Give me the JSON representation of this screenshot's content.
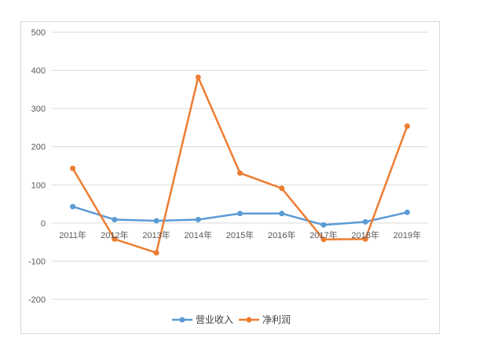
{
  "chart_data": {
    "type": "line",
    "title": "",
    "xlabel": "",
    "ylabel": "",
    "categories": [
      "2011年",
      "2012年",
      "2013年",
      "2014年",
      "2015年",
      "2016年",
      "2017年",
      "2018年",
      "2019年"
    ],
    "ylim": [
      -200,
      500
    ],
    "yticks": [
      500,
      400,
      300,
      200,
      100,
      0,
      -100,
      -200
    ],
    "ytick_labels": [
      "500",
      "400",
      "300",
      "200",
      "100",
      "0",
      "-100",
      "-200"
    ],
    "grid": true,
    "legend_position": "bottom",
    "series": [
      {
        "name": "营业收入",
        "color": "#5b9bd5",
        "values": [
          43,
          9,
          6,
          9,
          25,
          25,
          -5,
          3,
          28
        ]
      },
      {
        "name": "净利润",
        "color": "#ed7d31",
        "values": [
          143,
          -42,
          -78,
          382,
          131,
          91,
          -43,
          -42,
          254
        ]
      }
    ]
  }
}
